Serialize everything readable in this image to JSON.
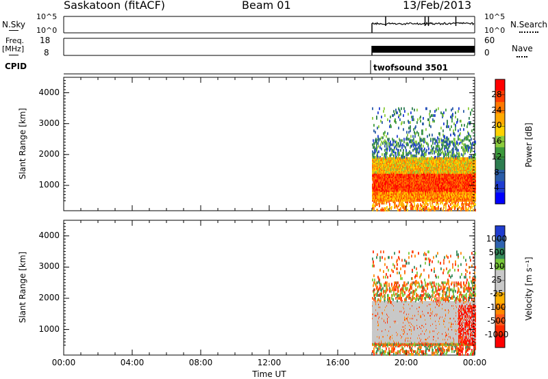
{
  "header": {
    "station": "Saskatoon (fitACF)",
    "beam": "Beam 01",
    "date": "13/Feb/2013"
  },
  "nsky_panel": {
    "left_label": "N.Sky",
    "right_label": "N.Search",
    "left_ticks": [
      "10^5",
      "10^0"
    ],
    "right_ticks": [
      "10^5",
      "10^0"
    ]
  },
  "freq_panel": {
    "left_label_top": "Freq.",
    "left_label_unit": "[MHz]",
    "right_label": "Nave",
    "left_ticks": [
      "18",
      "8"
    ],
    "right_ticks": [
      "60",
      "0"
    ]
  },
  "cpid": {
    "label": "CPID",
    "value": "twofsound 3501"
  },
  "time_axis": {
    "label": "Time UT",
    "ticks": [
      "00:00",
      "04:00",
      "08:00",
      "12:00",
      "16:00",
      "20:00",
      "00:00"
    ]
  },
  "chart_data": [
    {
      "type": "heatmap",
      "name": "power",
      "ylabel": "Slant Range [km]",
      "yticks": [
        "4000",
        "3000",
        "2000",
        "1000"
      ],
      "ylim": [
        180,
        4500
      ],
      "xlim_hours": [
        0,
        24
      ],
      "data_start_hour": 18.0,
      "colorbar": {
        "label": "Power [dB]",
        "ticks": [
          "28",
          "24",
          "20",
          "16",
          "12",
          "8",
          "4"
        ],
        "colors": [
          "#ff0000",
          "#ff3c00",
          "#ff7800",
          "#ffaa00",
          "#ffd200",
          "#8ccc3c",
          "#3c9a3c",
          "#2d7d50",
          "#2a5ca8",
          "#1e3cd2",
          "#0000ff"
        ]
      }
    },
    {
      "type": "heatmap",
      "name": "velocity",
      "ylabel": "Slant Range [km]",
      "yticks": [
        "4000",
        "3000",
        "2000",
        "1000"
      ],
      "ylim": [
        180,
        4500
      ],
      "xlim_hours": [
        0,
        24
      ],
      "data_start_hour": 18.0,
      "colorbar": {
        "label": "Velocity [m s⁻¹]",
        "ticks": [
          "1000",
          "500",
          "100",
          "25",
          "-25",
          "-100",
          "-500",
          "-1000"
        ],
        "colors": [
          "#1f3ccf",
          "#2f63b0",
          "#33895a",
          "#79c93a",
          "#c8c8c8",
          "#c8c8c8",
          "#ffb200",
          "#ff8a00",
          "#ff5a1a",
          "#ff2a00",
          "#ff0000"
        ]
      }
    }
  ]
}
